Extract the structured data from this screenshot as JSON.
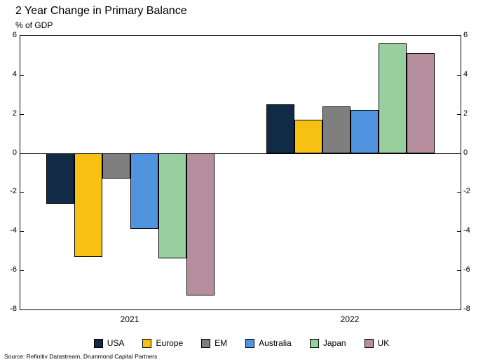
{
  "title": "2 Year Change in Primary Balance",
  "subtitle": "% of GDP",
  "source": "Source: Refinitiv Datastream, Drummond Capital Partners",
  "chart_data": {
    "type": "bar",
    "categories": [
      "2021",
      "2022"
    ],
    "series": [
      {
        "name": "USA",
        "color": "#112A46",
        "values": [
          -2.6,
          2.5
        ]
      },
      {
        "name": "Europe",
        "color": "#F7C114",
        "values": [
          -5.3,
          1.7
        ]
      },
      {
        "name": "EM",
        "color": "#7F7F7F",
        "values": [
          -1.3,
          2.4
        ]
      },
      {
        "name": "Australia",
        "color": "#5094DF",
        "values": [
          -3.9,
          2.2
        ]
      },
      {
        "name": "Japan",
        "color": "#99CE9E",
        "values": [
          -5.4,
          5.6
        ]
      },
      {
        "name": "UK",
        "color": "#B78E9D",
        "values": [
          -7.3,
          5.1
        ]
      }
    ],
    "ylim": [
      -8,
      6
    ],
    "yticks": [
      -8,
      -6,
      -4,
      -2,
      0,
      2,
      4,
      6
    ],
    "grid": false,
    "legend_position": "bottom"
  }
}
